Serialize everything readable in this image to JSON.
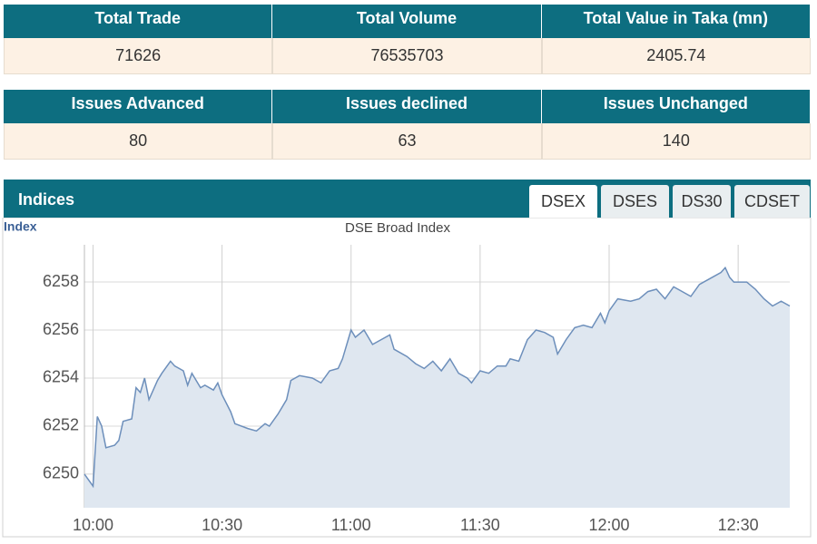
{
  "tables": [
    {
      "headers": [
        "Total Trade",
        "Total Volume",
        "Total Value in Taka (mn)"
      ],
      "row": [
        "71626",
        "76535703",
        "2405.74"
      ]
    },
    {
      "headers": [
        "Issues Advanced",
        "Issues declined",
        "Issues Unchanged"
      ],
      "row": [
        "80",
        "63",
        "140"
      ]
    }
  ],
  "panel": {
    "title": "Indices",
    "tabs": [
      {
        "label": "DSEX",
        "selected": true
      },
      {
        "label": "DSES",
        "selected": false
      },
      {
        "label": "DS30",
        "selected": false
      },
      {
        "label": "CDSET",
        "selected": false
      }
    ]
  },
  "chart_data": {
    "type": "area",
    "title": "DSE Broad Index",
    "y_label": "Index",
    "color": "#6d8fbb",
    "fill_color": "#dfe7f0",
    "grid": true,
    "xlim": [
      "09:58",
      "12:42"
    ],
    "xticks": [
      "10:00",
      "10:30",
      "11:00",
      "11:30",
      "12:00",
      "12:30"
    ],
    "ylim": [
      6248.6,
      6259.55
    ],
    "yticks": [
      6250,
      6252,
      6254,
      6256,
      6258
    ],
    "x": [
      "09:58",
      "10:00",
      "10:01",
      "10:02",
      "10:03",
      "10:05",
      "10:06",
      "10:07",
      "10:09",
      "10:10",
      "10:11",
      "10:12",
      "10:13",
      "10:15",
      "10:16",
      "10:18",
      "10:19",
      "10:21",
      "10:22",
      "10:23",
      "10:25",
      "10:26",
      "10:28",
      "10:29",
      "10:30",
      "10:32",
      "10:33",
      "10:36",
      "10:38",
      "10:40",
      "10:41",
      "10:43",
      "10:45",
      "10:46",
      "10:48",
      "10:51",
      "10:53",
      "10:55",
      "10:57",
      "10:58",
      "11:00",
      "11:01",
      "11:03",
      "11:05",
      "11:07",
      "11:09",
      "11:10",
      "11:13",
      "11:15",
      "11:17",
      "11:19",
      "11:21",
      "11:23",
      "11:25",
      "11:27",
      "11:28",
      "11:30",
      "11:32",
      "11:34",
      "11:36",
      "11:37",
      "11:39",
      "11:41",
      "11:43",
      "11:45",
      "11:47",
      "11:48",
      "11:50",
      "11:52",
      "11:54",
      "11:56",
      "11:58",
      "11:59",
      "12:00",
      "12:02",
      "12:05",
      "12:07",
      "12:09",
      "12:11",
      "12:13",
      "12:15",
      "12:17",
      "12:19",
      "12:21",
      "12:24",
      "12:26",
      "12:27",
      "12:28",
      "12:29",
      "12:32",
      "12:34",
      "12:36",
      "12:38",
      "12:40",
      "12:42"
    ],
    "values": [
      6250.0,
      6249.5,
      6252.4,
      6252.0,
      6251.1,
      6251.2,
      6251.4,
      6252.2,
      6252.3,
      6253.6,
      6253.4,
      6254.0,
      6253.1,
      6253.9,
      6254.2,
      6254.7,
      6254.5,
      6254.3,
      6253.7,
      6254.2,
      6253.6,
      6253.7,
      6253.5,
      6253.8,
      6253.3,
      6252.6,
      6252.1,
      6251.9,
      6251.8,
      6252.1,
      6252.0,
      6252.5,
      6253.1,
      6253.9,
      6254.1,
      6254.0,
      6253.8,
      6254.3,
      6254.4,
      6254.8,
      6256.0,
      6255.7,
      6256.0,
      6255.4,
      6255.6,
      6255.8,
      6255.2,
      6254.9,
      6254.6,
      6254.4,
      6254.7,
      6254.3,
      6254.8,
      6254.2,
      6254.0,
      6253.8,
      6254.3,
      6254.2,
      6254.5,
      6254.5,
      6254.8,
      6254.7,
      6255.6,
      6256.0,
      6255.9,
      6255.7,
      6255.0,
      6255.6,
      6256.1,
      6256.2,
      6256.1,
      6256.7,
      6256.3,
      6256.8,
      6257.3,
      6257.2,
      6257.3,
      6257.6,
      6257.7,
      6257.3,
      6257.8,
      6257.6,
      6257.4,
      6257.9,
      6258.2,
      6258.4,
      6258.6,
      6258.2,
      6258.0,
      6258.0,
      6257.7,
      6257.3,
      6257.0,
      6257.2,
      6257.0
    ]
  }
}
